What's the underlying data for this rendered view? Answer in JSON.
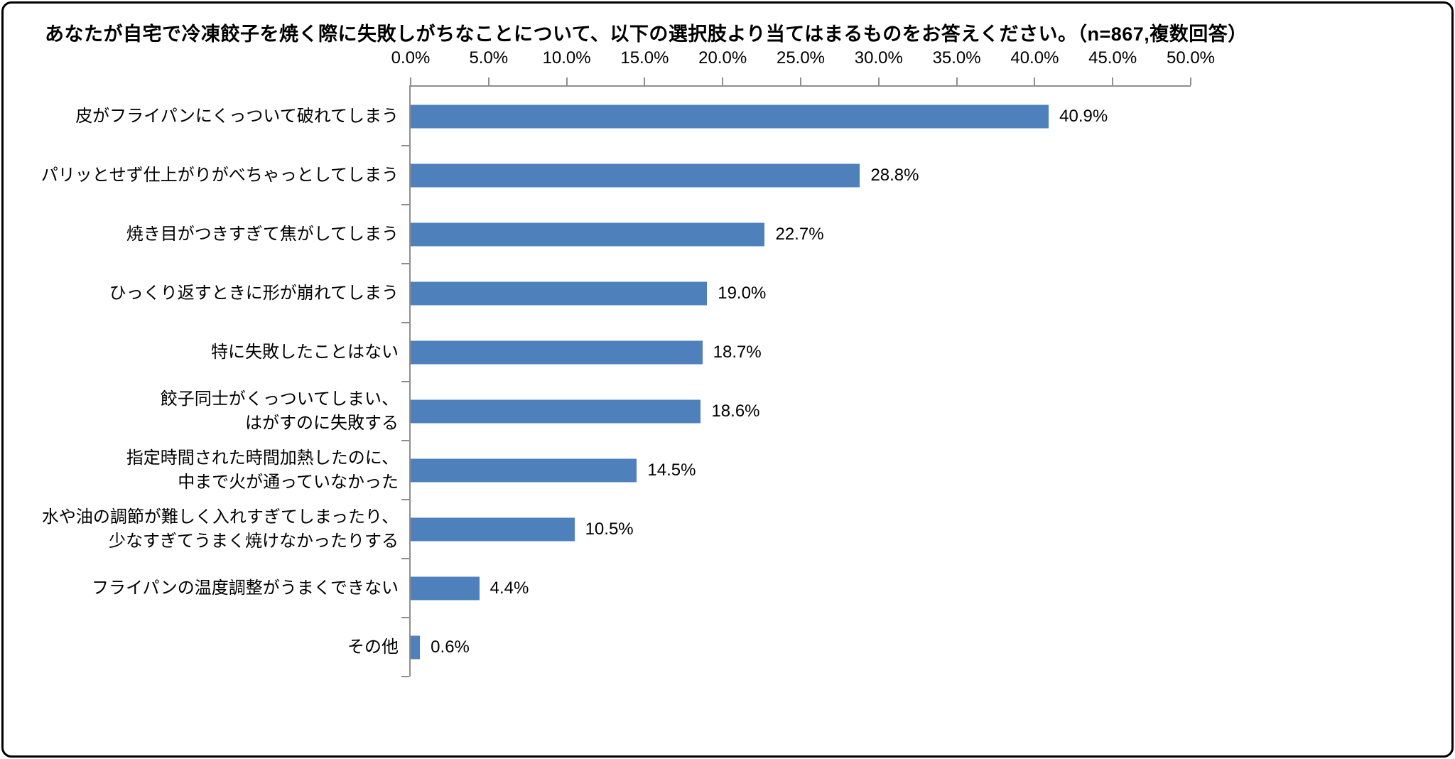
{
  "title": "あなたが自宅で冷凍餃子を焼く際に失敗しがちなことについて、以下の選択肢より当てはまるものをお答えください。（n=867,複数回答）",
  "chart_data": {
    "type": "bar",
    "orientation": "horizontal",
    "title": "あなたが自宅で冷凍餃子を焼く際に失敗しがちなことについて、以下の選択肢より当てはまるものをお答えください。（n=867,複数回答）",
    "sample_note": "n=867,複数回答",
    "categories": [
      "皮がフライパンにくっついて破れてしまう",
      "パリッとせず仕上がりがべちゃっとしてしまう",
      "焼き目がつきすぎて焦がしてしまう",
      "ひっくり返すときに形が崩れてしまう",
      "特に失敗したことはない",
      "餃子同士がくっついてしまい、\nはがすのに失敗する",
      "指定時間された時間加熱したのに、\n中まで火が通っていなかった",
      "水や油の調節が難しく入れすぎてしまったり、\n少なすぎてうまく焼けなかったりする",
      "フライパンの温度調整がうまくできない",
      "その他"
    ],
    "values": [
      40.9,
      28.8,
      22.7,
      19.0,
      18.7,
      18.6,
      14.5,
      10.5,
      4.4,
      0.6
    ],
    "data_labels": [
      "40.9%",
      "28.8%",
      "22.7%",
      "19.0%",
      "18.7%",
      "18.6%",
      "14.5%",
      "10.5%",
      "4.4%",
      "0.6%"
    ],
    "x_tick_labels": [
      "0.0%",
      "5.0%",
      "10.0%",
      "15.0%",
      "20.0%",
      "25.0%",
      "30.0%",
      "35.0%",
      "40.0%",
      "45.0%",
      "50.0%"
    ],
    "xlim": [
      0,
      50
    ],
    "xlabel": "",
    "ylabel": "",
    "grid": false,
    "legend": null,
    "bar_color": "#4E80BC",
    "axis_color": "#8E8E8E",
    "text_color": "#000000",
    "border_color": "#000000"
  }
}
